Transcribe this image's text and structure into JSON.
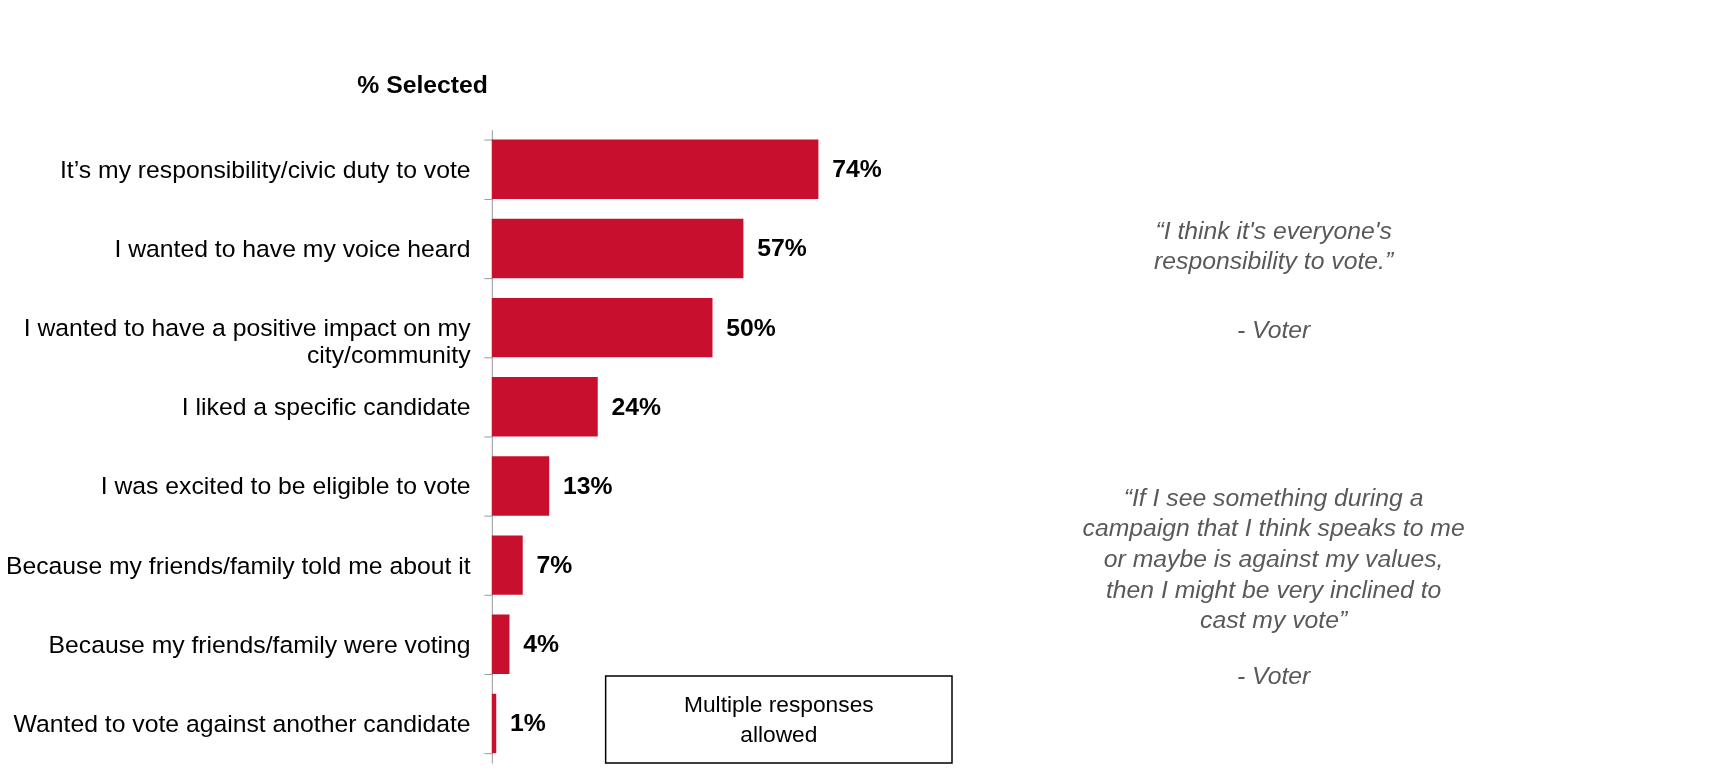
{
  "chart_data": {
    "type": "bar",
    "orientation": "horizontal",
    "title": "% Selected",
    "categories": [
      "It’s my responsibility/civic duty to vote",
      "I wanted to have my voice heard",
      "I wanted to have a positive impact on my city/community",
      "I liked a specific candidate",
      "I was excited to be eligible to vote",
      "Because my friends/family told me about it",
      "Because my friends/family were voting",
      "Wanted to vote against another candidate"
    ],
    "values": [
      74,
      57,
      50,
      24,
      13,
      7,
      4,
      1
    ],
    "value_labels": [
      "74%",
      "57%",
      "50%",
      "24%",
      "13%",
      "7%",
      "4%",
      "1%"
    ],
    "color": "#c8102e",
    "annotations": [
      "“I think it's everyone's responsibility to vote.”",
      "- Voter",
      "“If I see something during a campaign that I think speaks to me or maybe is against my values, then I might be very inclined to cast my vote”",
      "- Voter",
      "Multiple responses allowed"
    ],
    "grid": false
  }
}
